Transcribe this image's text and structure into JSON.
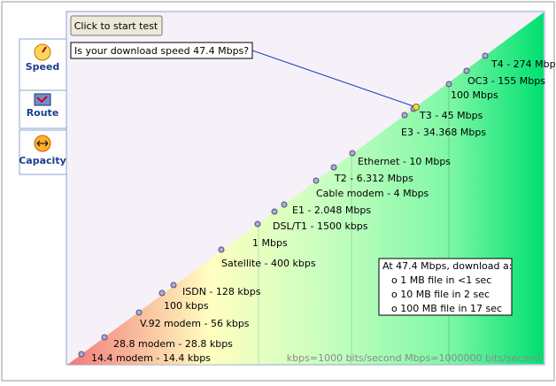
{
  "tabs": [
    "Speed",
    "Route",
    "Capacity"
  ],
  "button": "Click to start test",
  "question": "Is your download speed 47.4 Mbps?",
  "points": [
    "14.4 modem - 14.4 kbps",
    "28.8 modem - 28.8 kbps",
    "V.92 modem - 56 kbps",
    "100 kbps",
    "ISDN - 128 kbps",
    "Satellite - 400 kbps",
    "1 Mbps",
    "DSL/T1 - 1500 kbps",
    "E1 - 2.048 Mbps",
    "Cable modem - 4 Mbps",
    "T2 - 6.312 Mbps",
    "Ethernet - 10 Mbps",
    "E3 - 34.368 Mbps",
    "T3 - 45 Mbps",
    "100 Mbps",
    "OC3 - 155 Mbps",
    "T4 - 274 Mbps"
  ],
  "info_box": {
    "title": "At 47.4 Mbps, download a:",
    "lines": [
      "o 1 MB file in <1 sec",
      "o 10 MB file in 2 sec",
      "o 100 MB file in 17 sec"
    ]
  },
  "footer": "kbps=1000 bits/second  Mbps=1000000 bits/second"
}
